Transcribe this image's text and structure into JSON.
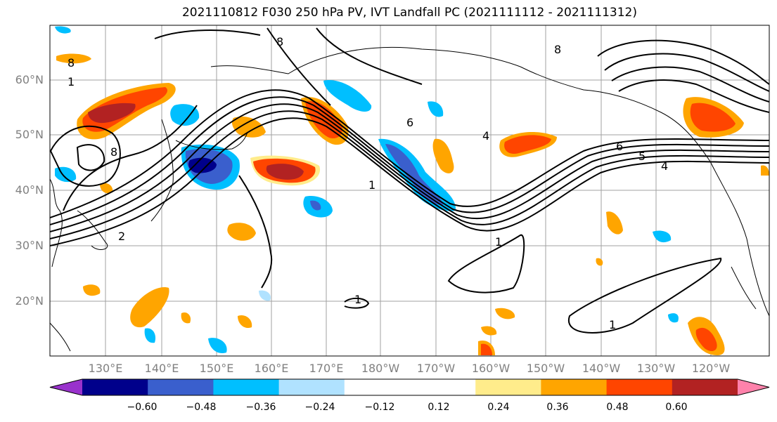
{
  "title": "2021110812 F030 250 hPa PV, IVT Landfall PC (2021111112 - 2021111312)",
  "lat_labels": [
    "60°N",
    "50°N",
    "40°N",
    "30°N",
    "20°N"
  ],
  "lon_labels": [
    "130°E",
    "140°E",
    "150°E",
    "160°E",
    "170°E",
    "180°W",
    "170°W",
    "160°W",
    "150°W",
    "140°W",
    "130°W",
    "120°W"
  ],
  "contour_labels": [
    "8",
    "1",
    "8",
    "8",
    "6",
    "4",
    "6",
    "5",
    "4",
    "1",
    "1",
    "1",
    "1",
    "2",
    "8"
  ],
  "colorbar": {
    "colors": [
      "#9932CC",
      "#00008B",
      "#3A5FCD",
      "#00BFFF",
      "#B0E2FF",
      "#FFFFFF",
      "#FFFFFF",
      "#FFEC8B",
      "#FFA500",
      "#FF4500",
      "#B22222",
      "#FF82AB"
    ],
    "tick_labels": [
      "−0.60",
      "−0.48",
      "−0.36",
      "−0.24",
      "−0.12",
      "0.12",
      "0.24",
      "0.36",
      "0.48",
      "0.60"
    ]
  },
  "colors": {
    "land_line": "#000000",
    "grid": "#a0a0a0",
    "neg_strong": "#3A5FCD",
    "pos_strong": "#B22222"
  }
}
